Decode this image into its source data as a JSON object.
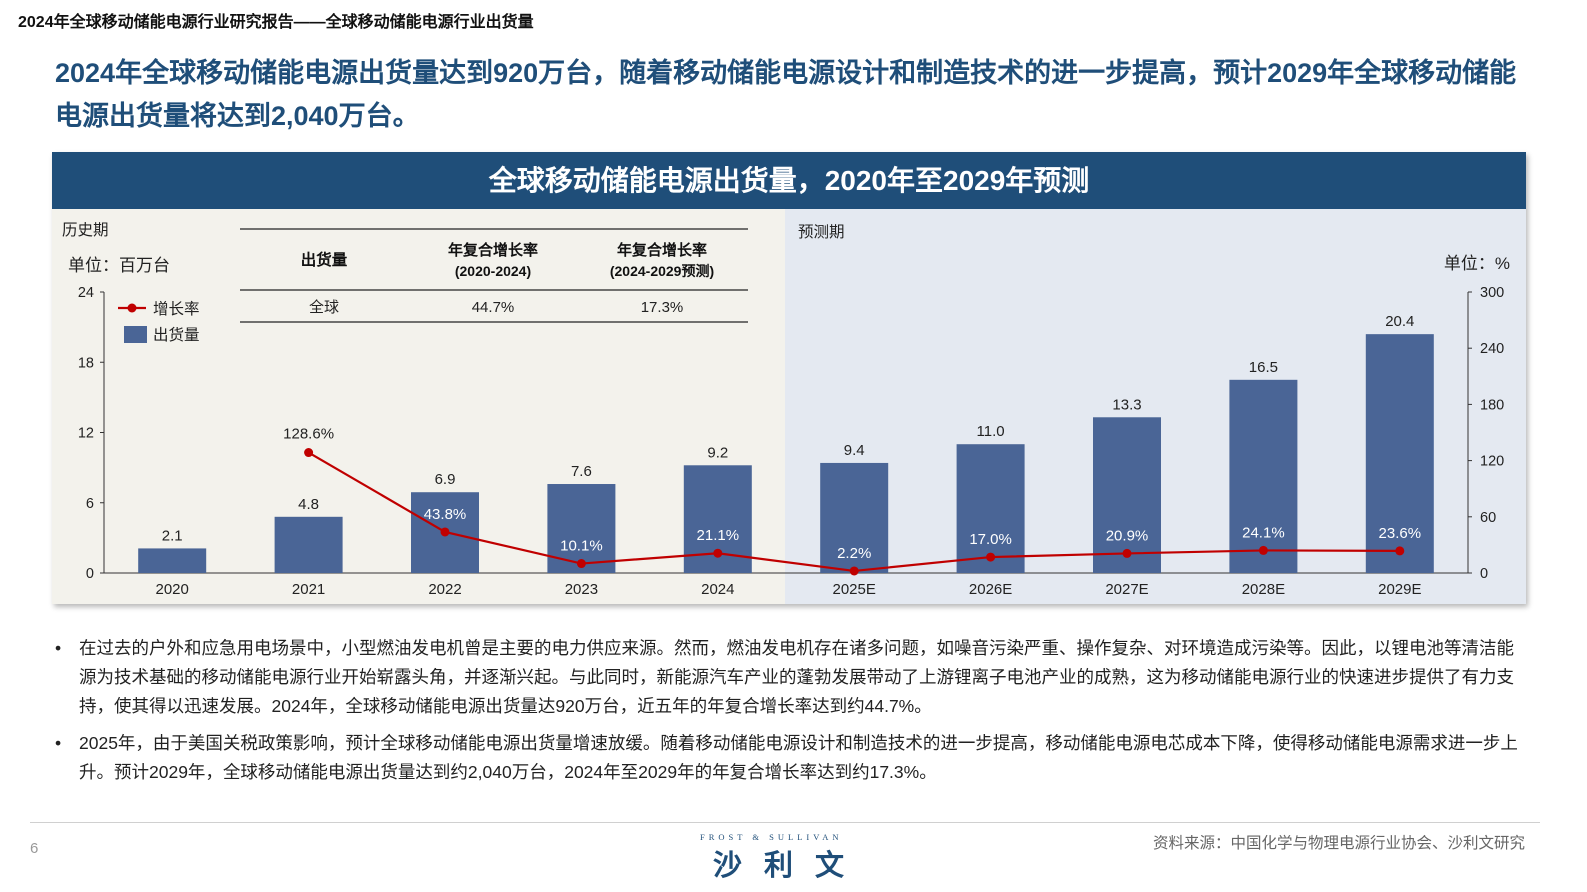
{
  "header": {
    "top_title": "2024年全球移动储能电源行业研究报告——全球移动储能电源行业出货量",
    "headline": "2024年全球移动储能电源出货量达到920万台，随着移动储能电源设计和制造技术的进一步提高，预计2029年全球移动储能电源出货量将达到2,040万台。"
  },
  "chart_data": {
    "type": "bar",
    "title": "全球移动储能电源出货量，2020年至2029年预测",
    "categories": [
      "2020",
      "2021",
      "2022",
      "2023",
      "2024",
      "2025E",
      "2026E",
      "2027E",
      "2028E",
      "2029E"
    ],
    "series": [
      {
        "name": "出货量",
        "type": "bar",
        "axis": "left",
        "values": [
          2.1,
          4.8,
          6.9,
          7.6,
          9.2,
          9.4,
          11.0,
          13.3,
          16.5,
          20.4
        ],
        "labels": [
          "2.1",
          "4.8",
          "6.9",
          "7.6",
          "9.2",
          "9.4",
          "11.0",
          "13.3",
          "16.5",
          "20.4"
        ],
        "color": "#4A6596"
      },
      {
        "name": "增长率",
        "type": "line",
        "axis": "right",
        "values": [
          null,
          128.6,
          43.8,
          10.1,
          21.1,
          2.2,
          17.0,
          20.9,
          24.1,
          23.6
        ],
        "labels": [
          "",
          "128.6%",
          "43.8%",
          "10.1%",
          "21.1%",
          "2.2%",
          "17.0%",
          "20.9%",
          "24.1%",
          "23.6%"
        ],
        "color": "#C00000"
      }
    ],
    "y_left": {
      "label": "单位：百万台",
      "range": [
        0,
        24
      ],
      "ticks": [
        "0",
        "6",
        "12",
        "18",
        "24"
      ]
    },
    "y_right": {
      "label": "单位：%",
      "range": [
        0,
        300
      ],
      "ticks": [
        "0",
        "60",
        "120",
        "180",
        "240",
        "300"
      ]
    },
    "period_labels": {
      "history": "历史期",
      "forecast": "预测期"
    },
    "legend": {
      "position": "top-left",
      "entries": [
        "增长率",
        "出货量"
      ]
    },
    "cagr_table": {
      "headers": [
        "出货量",
        "年复合增长率\n(2020-2024)",
        "年复合增长率\n(2024-2029预测)"
      ],
      "row": [
        "全球",
        "44.7%",
        "17.3%"
      ]
    },
    "grid": false
  },
  "bullets": [
    "在过去的户外和应急用电场景中，小型燃油发电机曾是主要的电力供应来源。然而，燃油发电机存在诸多问题，如噪音污染严重、操作复杂、对环境造成污染等。因此，以锂电池等清洁能源为技术基础的移动储能电源行业开始崭露头角，并逐渐兴起。与此同时，新能源汽车产业的蓬勃发展带动了上游锂离子电池产业的成熟，这为移动储能电源行业的快速进步提供了有力支持，使其得以迅速发展。2024年，全球移动储能电源出货量达920万台，近五年的年复合增长率达到约44.7%。",
    "2025年，由于美国关税政策影响，预计全球移动储能电源出货量增速放缓。随着移动储能电源设计和制造技术的进一步提高，移动储能电源电芯成本下降，使得移动储能电源需求进一步上升。预计2029年，全球移动储能电源出货量达到约2,040万台，2024年至2029年的年复合增长率达到约17.3%。"
  ],
  "footer": {
    "page_number": "6",
    "logo_en": "FROST & SULLIVAN",
    "logo_cn": "沙利文",
    "source": "资料来源：中国化学与物理电源行业协会、沙利文研究"
  }
}
